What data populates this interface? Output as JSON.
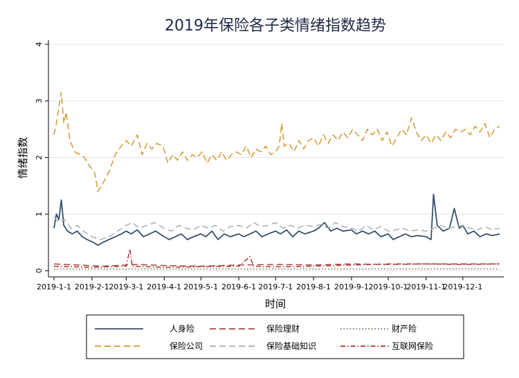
{
  "chart_data": {
    "type": "line",
    "title": "2019年保险各子类情绪指数趋势",
    "xlabel": "时间",
    "ylabel": "情绪指数",
    "ylim": [
      0,
      4
    ],
    "yticks": [
      "0",
      "1",
      "2",
      "3",
      "4"
    ],
    "xticks": [
      "2019-1-1",
      "2019-2-1",
      "2019-3-1",
      "2019-4-1",
      "2019-5-1",
      "2019-6-1",
      "2019-7-1",
      "2019-8-1",
      "2019-9-1",
      "2019-10-1",
      "2019-11-1",
      "2019-12-1"
    ],
    "xrange": [
      "2019-01-01",
      "2019-12-31"
    ],
    "grid": "horizontal",
    "legend_position": "bottom",
    "series": [
      {
        "name": "人身险",
        "color": "#34506b",
        "style": "solid",
        "points": [
          [
            "2019-01-01",
            0.75
          ],
          [
            "2019-01-03",
            1.0
          ],
          [
            "2019-01-05",
            0.9
          ],
          [
            "2019-01-07",
            1.25
          ],
          [
            "2019-01-09",
            0.8
          ],
          [
            "2019-01-12",
            0.7
          ],
          [
            "2019-01-16",
            0.65
          ],
          [
            "2019-01-20",
            0.7
          ],
          [
            "2019-01-24",
            0.6
          ],
          [
            "2019-01-28",
            0.55
          ],
          [
            "2019-02-02",
            0.5
          ],
          [
            "2019-02-06",
            0.45
          ],
          [
            "2019-02-10",
            0.5
          ],
          [
            "2019-02-15",
            0.55
          ],
          [
            "2019-02-20",
            0.6
          ],
          [
            "2019-02-25",
            0.65
          ],
          [
            "2019-03-01",
            0.7
          ],
          [
            "2019-03-05",
            0.65
          ],
          [
            "2019-03-10",
            0.72
          ],
          [
            "2019-03-15",
            0.6
          ],
          [
            "2019-03-20",
            0.65
          ],
          [
            "2019-03-25",
            0.7
          ],
          [
            "2019-04-01",
            0.6
          ],
          [
            "2019-04-05",
            0.55
          ],
          [
            "2019-04-10",
            0.6
          ],
          [
            "2019-04-15",
            0.65
          ],
          [
            "2019-04-20",
            0.55
          ],
          [
            "2019-04-25",
            0.6
          ],
          [
            "2019-05-01",
            0.65
          ],
          [
            "2019-05-05",
            0.6
          ],
          [
            "2019-05-10",
            0.7
          ],
          [
            "2019-05-15",
            0.55
          ],
          [
            "2019-05-20",
            0.65
          ],
          [
            "2019-05-25",
            0.6
          ],
          [
            "2019-06-01",
            0.65
          ],
          [
            "2019-06-05",
            0.6
          ],
          [
            "2019-06-10",
            0.65
          ],
          [
            "2019-06-15",
            0.7
          ],
          [
            "2019-06-20",
            0.6
          ],
          [
            "2019-06-25",
            0.65
          ],
          [
            "2019-07-01",
            0.7
          ],
          [
            "2019-07-05",
            0.65
          ],
          [
            "2019-07-10",
            0.72
          ],
          [
            "2019-07-15",
            0.6
          ],
          [
            "2019-07-20",
            0.7
          ],
          [
            "2019-07-25",
            0.65
          ],
          [
            "2019-08-01",
            0.7
          ],
          [
            "2019-08-05",
            0.75
          ],
          [
            "2019-08-10",
            0.85
          ],
          [
            "2019-08-15",
            0.7
          ],
          [
            "2019-08-20",
            0.75
          ],
          [
            "2019-08-25",
            0.7
          ],
          [
            "2019-09-01",
            0.72
          ],
          [
            "2019-09-05",
            0.65
          ],
          [
            "2019-09-10",
            0.7
          ],
          [
            "2019-09-15",
            0.65
          ],
          [
            "2019-09-20",
            0.7
          ],
          [
            "2019-09-25",
            0.6
          ],
          [
            "2019-10-01",
            0.65
          ],
          [
            "2019-10-05",
            0.55
          ],
          [
            "2019-10-10",
            0.6
          ],
          [
            "2019-10-15",
            0.65
          ],
          [
            "2019-10-20",
            0.6
          ],
          [
            "2019-10-25",
            0.62
          ],
          [
            "2019-11-01",
            0.6
          ],
          [
            "2019-11-05",
            0.55
          ],
          [
            "2019-11-07",
            1.35
          ],
          [
            "2019-11-10",
            0.8
          ],
          [
            "2019-11-15",
            0.7
          ],
          [
            "2019-11-20",
            0.75
          ],
          [
            "2019-11-24",
            1.1
          ],
          [
            "2019-11-28",
            0.75
          ],
          [
            "2019-12-01",
            0.8
          ],
          [
            "2019-12-05",
            0.65
          ],
          [
            "2019-12-10",
            0.7
          ],
          [
            "2019-12-15",
            0.6
          ],
          [
            "2019-12-20",
            0.65
          ],
          [
            "2019-12-25",
            0.62
          ],
          [
            "2019-12-31",
            0.65
          ]
        ]
      },
      {
        "name": "保险公司",
        "color": "#d4962f",
        "style": "dash",
        "points": [
          [
            "2019-01-01",
            2.4
          ],
          [
            "2019-01-03",
            2.6
          ],
          [
            "2019-01-05",
            2.9
          ],
          [
            "2019-01-07",
            3.15
          ],
          [
            "2019-01-09",
            2.6
          ],
          [
            "2019-01-11",
            2.8
          ],
          [
            "2019-01-14",
            2.3
          ],
          [
            "2019-01-18",
            2.1
          ],
          [
            "2019-01-22",
            2.05
          ],
          [
            "2019-01-26",
            2.0
          ],
          [
            "2019-01-30",
            1.85
          ],
          [
            "2019-02-03",
            1.75
          ],
          [
            "2019-02-06",
            1.4
          ],
          [
            "2019-02-10",
            1.55
          ],
          [
            "2019-02-15",
            1.75
          ],
          [
            "2019-02-20",
            2.05
          ],
          [
            "2019-02-25",
            2.2
          ],
          [
            "2019-03-01",
            2.3
          ],
          [
            "2019-03-05",
            2.2
          ],
          [
            "2019-03-10",
            2.4
          ],
          [
            "2019-03-14",
            2.05
          ],
          [
            "2019-03-18",
            2.25
          ],
          [
            "2019-03-22",
            2.15
          ],
          [
            "2019-03-26",
            2.25
          ],
          [
            "2019-03-31",
            2.2
          ],
          [
            "2019-04-04",
            1.9
          ],
          [
            "2019-04-08",
            2.05
          ],
          [
            "2019-04-12",
            1.95
          ],
          [
            "2019-04-16",
            2.1
          ],
          [
            "2019-04-20",
            1.95
          ],
          [
            "2019-04-24",
            2.05
          ],
          [
            "2019-04-28",
            2.0
          ],
          [
            "2019-05-02",
            2.1
          ],
          [
            "2019-05-06",
            1.9
          ],
          [
            "2019-05-10",
            2.05
          ],
          [
            "2019-05-14",
            1.95
          ],
          [
            "2019-05-18",
            2.1
          ],
          [
            "2019-05-22",
            1.95
          ],
          [
            "2019-05-26",
            2.05
          ],
          [
            "2019-05-30",
            2.1
          ],
          [
            "2019-06-03",
            2.05
          ],
          [
            "2019-06-07",
            2.2
          ],
          [
            "2019-06-11",
            2.0
          ],
          [
            "2019-06-15",
            2.15
          ],
          [
            "2019-06-19",
            2.1
          ],
          [
            "2019-06-23",
            2.2
          ],
          [
            "2019-06-27",
            2.05
          ],
          [
            "2019-07-01",
            2.1
          ],
          [
            "2019-07-04",
            2.2
          ],
          [
            "2019-07-06",
            2.6
          ],
          [
            "2019-07-08",
            2.2
          ],
          [
            "2019-07-12",
            2.25
          ],
          [
            "2019-07-16",
            2.1
          ],
          [
            "2019-07-20",
            2.3
          ],
          [
            "2019-07-24",
            2.15
          ],
          [
            "2019-07-28",
            2.3
          ],
          [
            "2019-08-01",
            2.35
          ],
          [
            "2019-08-05",
            2.2
          ],
          [
            "2019-08-09",
            2.4
          ],
          [
            "2019-08-13",
            2.25
          ],
          [
            "2019-08-17",
            2.4
          ],
          [
            "2019-08-21",
            2.3
          ],
          [
            "2019-08-25",
            2.45
          ],
          [
            "2019-08-29",
            2.35
          ],
          [
            "2019-09-02",
            2.5
          ],
          [
            "2019-09-06",
            2.4
          ],
          [
            "2019-09-10",
            2.3
          ],
          [
            "2019-09-14",
            2.5
          ],
          [
            "2019-09-18",
            2.4
          ],
          [
            "2019-09-22",
            2.5
          ],
          [
            "2019-09-26",
            2.3
          ],
          [
            "2019-09-30",
            2.45
          ],
          [
            "2019-10-04",
            2.2
          ],
          [
            "2019-10-08",
            2.35
          ],
          [
            "2019-10-12",
            2.5
          ],
          [
            "2019-10-16",
            2.4
          ],
          [
            "2019-10-20",
            2.7
          ],
          [
            "2019-10-24",
            2.45
          ],
          [
            "2019-10-28",
            2.3
          ],
          [
            "2019-11-01",
            2.4
          ],
          [
            "2019-11-05",
            2.25
          ],
          [
            "2019-11-09",
            2.4
          ],
          [
            "2019-11-13",
            2.3
          ],
          [
            "2019-11-17",
            2.45
          ],
          [
            "2019-11-21",
            2.35
          ],
          [
            "2019-11-25",
            2.5
          ],
          [
            "2019-11-29",
            2.45
          ],
          [
            "2019-12-03",
            2.5
          ],
          [
            "2019-12-07",
            2.4
          ],
          [
            "2019-12-11",
            2.55
          ],
          [
            "2019-12-15",
            2.45
          ],
          [
            "2019-12-19",
            2.6
          ],
          [
            "2019-12-23",
            2.35
          ],
          [
            "2019-12-27",
            2.5
          ],
          [
            "2019-12-31",
            2.55
          ]
        ]
      },
      {
        "name": "保险理财",
        "color": "#a0474e",
        "style": "dash",
        "points": [
          [
            "2019-01-01",
            0.12
          ],
          [
            "2019-01-20",
            0.1
          ],
          [
            "2019-02-10",
            0.08
          ],
          [
            "2019-03-01",
            0.1
          ],
          [
            "2019-03-10",
            0.11
          ],
          [
            "2019-04-01",
            0.09
          ],
          [
            "2019-05-01",
            0.08
          ],
          [
            "2019-06-01",
            0.1
          ],
          [
            "2019-07-01",
            0.11
          ],
          [
            "2019-08-01",
            0.1
          ],
          [
            "2019-09-01",
            0.12
          ],
          [
            "2019-10-01",
            0.11
          ],
          [
            "2019-11-01",
            0.12
          ],
          [
            "2019-12-01",
            0.12
          ],
          [
            "2019-12-31",
            0.12
          ]
        ]
      },
      {
        "name": "保险基础知识",
        "color": "#a6aeb3",
        "style": "dash",
        "points": [
          [
            "2019-01-01",
            0.95
          ],
          [
            "2019-01-05",
            0.85
          ],
          [
            "2019-01-10",
            0.9
          ],
          [
            "2019-01-15",
            0.75
          ],
          [
            "2019-01-20",
            0.8
          ],
          [
            "2019-01-25",
            0.7
          ],
          [
            "2019-02-01",
            0.6
          ],
          [
            "2019-02-08",
            0.55
          ],
          [
            "2019-02-15",
            0.6
          ],
          [
            "2019-02-22",
            0.7
          ],
          [
            "2019-03-01",
            0.8
          ],
          [
            "2019-03-06",
            0.85
          ],
          [
            "2019-03-12",
            0.75
          ],
          [
            "2019-03-18",
            0.8
          ],
          [
            "2019-03-24",
            0.85
          ],
          [
            "2019-04-01",
            0.75
          ],
          [
            "2019-04-07",
            0.7
          ],
          [
            "2019-04-13",
            0.8
          ],
          [
            "2019-04-19",
            0.75
          ],
          [
            "2019-04-25",
            0.72
          ],
          [
            "2019-05-01",
            0.8
          ],
          [
            "2019-05-07",
            0.75
          ],
          [
            "2019-05-13",
            0.8
          ],
          [
            "2019-05-19",
            0.7
          ],
          [
            "2019-05-25",
            0.78
          ],
          [
            "2019-06-01",
            0.8
          ],
          [
            "2019-06-07",
            0.75
          ],
          [
            "2019-06-13",
            0.85
          ],
          [
            "2019-06-19",
            0.78
          ],
          [
            "2019-06-25",
            0.8
          ],
          [
            "2019-07-01",
            0.85
          ],
          [
            "2019-07-07",
            0.75
          ],
          [
            "2019-07-13",
            0.8
          ],
          [
            "2019-07-19",
            0.75
          ],
          [
            "2019-07-25",
            0.8
          ],
          [
            "2019-08-01",
            0.78
          ],
          [
            "2019-08-07",
            0.82
          ],
          [
            "2019-08-13",
            0.75
          ],
          [
            "2019-08-19",
            0.85
          ],
          [
            "2019-08-25",
            0.78
          ],
          [
            "2019-09-01",
            0.75
          ],
          [
            "2019-09-07",
            0.7
          ],
          [
            "2019-09-13",
            0.8
          ],
          [
            "2019-09-19",
            0.72
          ],
          [
            "2019-09-25",
            0.78
          ],
          [
            "2019-10-01",
            0.7
          ],
          [
            "2019-10-07",
            0.72
          ],
          [
            "2019-10-13",
            0.75
          ],
          [
            "2019-10-19",
            0.7
          ],
          [
            "2019-10-25",
            0.72
          ],
          [
            "2019-11-01",
            0.7
          ],
          [
            "2019-11-07",
            0.75
          ],
          [
            "2019-11-13",
            0.8
          ],
          [
            "2019-11-19",
            0.75
          ],
          [
            "2019-11-25",
            0.78
          ],
          [
            "2019-12-01",
            0.8
          ],
          [
            "2019-12-07",
            0.75
          ],
          [
            "2019-12-13",
            0.72
          ],
          [
            "2019-12-19",
            0.78
          ],
          [
            "2019-12-25",
            0.72
          ],
          [
            "2019-12-31",
            0.75
          ]
        ]
      },
      {
        "name": "财产险",
        "color": "#6b6b4a",
        "style": "dot",
        "points": [
          [
            "2019-01-01",
            0.03
          ],
          [
            "2019-03-01",
            0.03
          ],
          [
            "2019-05-01",
            0.03
          ],
          [
            "2019-07-01",
            0.03
          ],
          [
            "2019-09-01",
            0.03
          ],
          [
            "2019-11-01",
            0.03
          ],
          [
            "2019-12-31",
            0.03
          ]
        ]
      },
      {
        "name": "互联网保险",
        "color": "#b33030",
        "style": "dashdot",
        "points": [
          [
            "2019-01-01",
            0.08
          ],
          [
            "2019-02-01",
            0.06
          ],
          [
            "2019-03-01",
            0.08
          ],
          [
            "2019-03-04",
            0.38
          ],
          [
            "2019-03-06",
            0.08
          ],
          [
            "2019-04-01",
            0.06
          ],
          [
            "2019-05-01",
            0.07
          ],
          [
            "2019-06-01",
            0.08
          ],
          [
            "2019-06-10",
            0.25
          ],
          [
            "2019-06-13",
            0.08
          ],
          [
            "2019-07-01",
            0.07
          ],
          [
            "2019-08-01",
            0.08
          ],
          [
            "2019-09-01",
            0.1
          ],
          [
            "2019-10-01",
            0.12
          ],
          [
            "2019-11-01",
            0.12
          ],
          [
            "2019-12-01",
            0.11
          ],
          [
            "2019-12-31",
            0.12
          ]
        ]
      }
    ]
  }
}
